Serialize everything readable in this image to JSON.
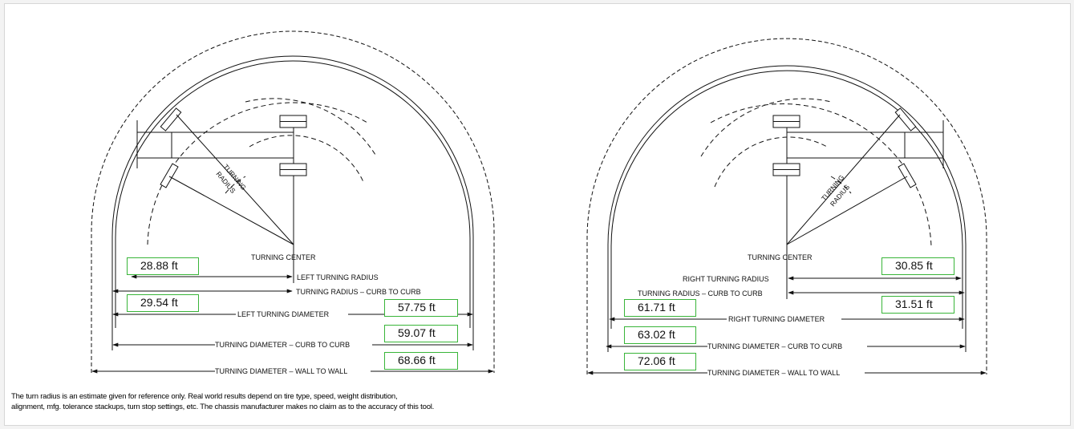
{
  "left_diagram": {
    "turning_center_label": "TURNING CENTER",
    "turning_label": "TURNING",
    "radius_label": "RADIUS",
    "dim_labels": {
      "turning_radius": "LEFT TURNING RADIUS",
      "radius_curb": "TURNING RADIUS – CURB TO CURB",
      "turning_diameter": "LEFT TURNING DIAMETER",
      "diameter_curb": "TURNING DIAMETER – CURB TO CURB",
      "diameter_wall": "TURNING DIAMETER – WALL TO WALL"
    },
    "values": {
      "turning_radius": "28.88 ft",
      "radius_curb": "29.54 ft",
      "turning_diameter": "57.75 ft",
      "diameter_curb": "59.07 ft",
      "diameter_wall": "68.66 ft"
    }
  },
  "right_diagram": {
    "turning_center_label": "TURNING CENTER",
    "turning_label": "TURNING",
    "radius_label": "RADIUS",
    "dim_labels": {
      "turning_radius": "RIGHT TURNING RADIUS",
      "radius_curb": "TURNING RADIUS – CURB TO CURB",
      "turning_diameter": "RIGHT TURNING DIAMETER",
      "diameter_curb": "TURNING DIAMETER – CURB TO CURB",
      "diameter_wall": "TURNING DIAMETER – WALL TO WALL"
    },
    "values": {
      "turning_radius": "30.85 ft",
      "radius_curb": "31.51 ft",
      "turning_diameter": "61.71 ft",
      "diameter_curb": "63.02 ft",
      "diameter_wall": "72.06 ft"
    }
  },
  "disclaimer": {
    "line1": "The turn radius is an estimate given for reference only.  Real world results depend on tire type, speed, weight distribution,",
    "line2": "alignment, mfg. tolerance stackups, turn stop settings, etc.  The chassis manufacturer makes no claim as to the accuracy of this tool."
  },
  "colors": {
    "value_box_border": "#39b539",
    "line": "#111111"
  }
}
